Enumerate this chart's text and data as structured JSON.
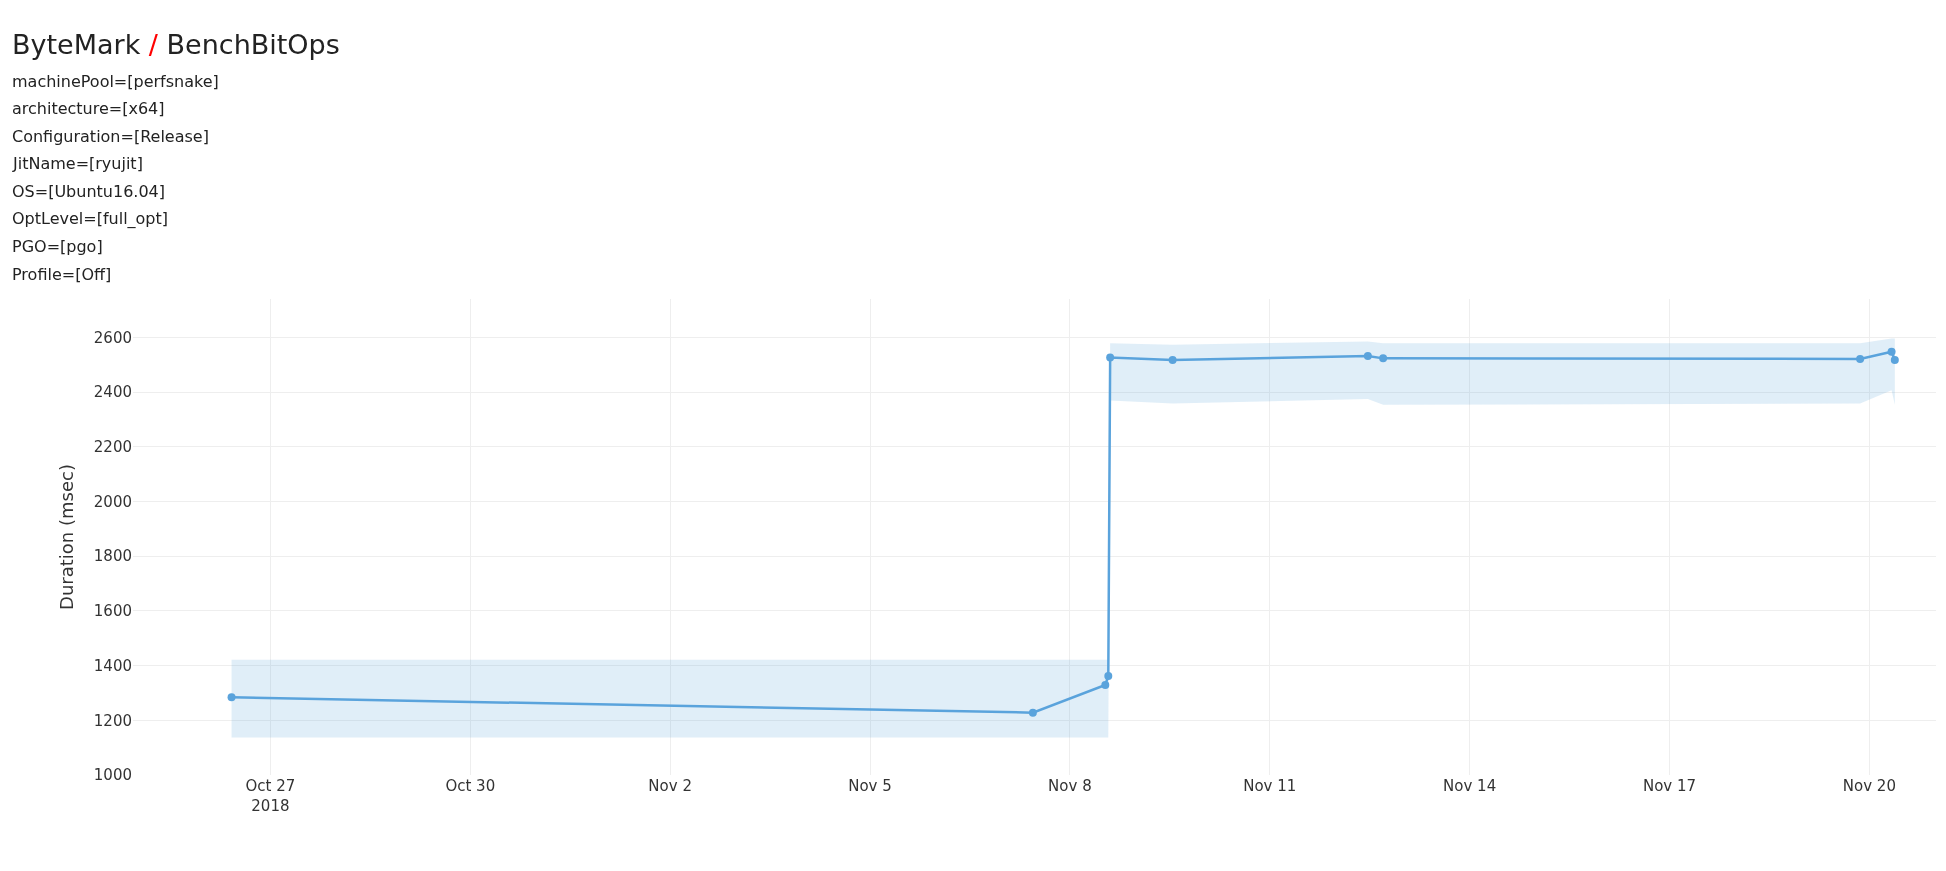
{
  "chart_data": {
    "type": "line",
    "title": "ByteMark / BenchBitOps",
    "subtitle": "machinePool=[perfsnake]\narchitecture=[x64]\nConfiguration=[Release]\nJitName=[ryujit]\nOS=[Ubuntu16.04]\nOptLevel=[full_opt]\nPGO=[pgo]\nProfile=[Off]",
    "ylabel": "Duration (msec)",
    "x": [
      "2018-10-26T10:00",
      "2018-11-07T10:40",
      "2018-11-08T12:45",
      "2018-11-08T13:50",
      "2018-11-08T14:30",
      "2018-11-09T13:00",
      "2018-11-12T11:20",
      "2018-11-12T16:50",
      "2018-11-19T20:40",
      "2018-11-20T08:00",
      "2018-11-20T09:10"
    ],
    "series": [
      {
        "color": "#5aa3dc",
        "values": [
          1284,
          1228,
          1329,
          1362,
          2526,
          2517,
          2532,
          2523,
          2521,
          2547,
          2517
        ],
        "lower": [
          1137,
          1137,
          1137,
          1137,
          2369,
          2358,
          2374,
          2353,
          2358,
          2406,
          2353
        ],
        "upper": [
          1421,
          1421,
          1421,
          1421,
          2578,
          2573,
          2585,
          2578,
          2578,
          2596,
          2596
        ]
      }
    ],
    "xlim": [
      "2018-10-24T22:30",
      "2018-11-21T00:00"
    ],
    "xticks": [
      {
        "value": "2018-10-27",
        "label": "Oct 27\n2018"
      },
      {
        "value": "2018-10-30",
        "label": "Oct 30"
      },
      {
        "value": "2018-11-02",
        "label": "Nov 2"
      },
      {
        "value": "2018-11-05",
        "label": "Nov 5"
      },
      {
        "value": "2018-11-08",
        "label": "Nov 8"
      },
      {
        "value": "2018-11-11",
        "label": "Nov 11"
      },
      {
        "value": "2018-11-14",
        "label": "Nov 14"
      },
      {
        "value": "2018-11-17",
        "label": "Nov 17"
      },
      {
        "value": "2018-11-20",
        "label": "Nov 20"
      }
    ],
    "ylim": [
      1000,
      2740
    ],
    "yticks": [
      1000,
      1200,
      1400,
      1600,
      1800,
      2000,
      2200,
      2400,
      2600
    ],
    "grid": true,
    "marker": "circle",
    "line_style": "solid"
  }
}
